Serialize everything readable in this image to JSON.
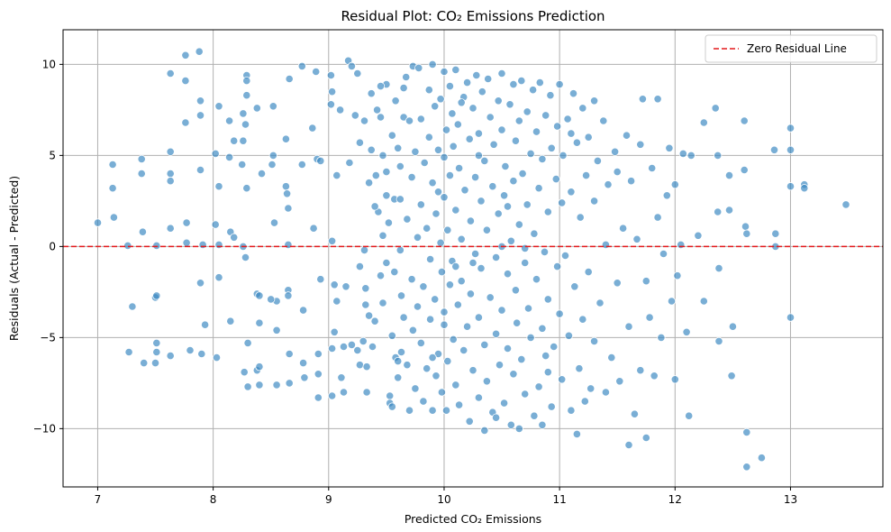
{
  "chart_data": {
    "type": "scatter",
    "title": "Residual Plot: CO₂ Emissions Prediction",
    "xlabel": "Predicted CO₂ Emissions",
    "ylabel": "Residuals (Actual - Predicted)",
    "xlim": [
      6.7,
      13.8
    ],
    "ylim": [
      -13.2,
      11.9
    ],
    "xticks": [
      7,
      8,
      9,
      10,
      11,
      12,
      13
    ],
    "yticks": [
      -10,
      -5,
      0,
      5,
      10
    ],
    "grid": true,
    "legend": {
      "position": "top-right",
      "entries": [
        "Zero Residual Line"
      ]
    },
    "reference_line": {
      "y": 0,
      "label": "Zero Residual Line",
      "style": "dashed",
      "color": "#e41a1c"
    },
    "point_color": "#3a87c1",
    "points": [
      [
        7.0,
        1.3
      ],
      [
        7.13,
        4.5
      ],
      [
        7.13,
        3.2
      ],
      [
        7.14,
        1.6
      ],
      [
        7.26,
        0.05
      ],
      [
        7.27,
        -5.8
      ],
      [
        7.3,
        -3.3
      ],
      [
        7.38,
        4.8
      ],
      [
        7.38,
        4.0
      ],
      [
        7.39,
        0.8
      ],
      [
        7.4,
        -6.4
      ],
      [
        7.5,
        -6.4
      ],
      [
        7.5,
        -2.8
      ],
      [
        7.51,
        -2.7
      ],
      [
        7.51,
        -5.3
      ],
      [
        7.51,
        -5.8
      ],
      [
        7.51,
        0.05
      ],
      [
        7.63,
        9.5
      ],
      [
        7.63,
        5.2
      ],
      [
        7.63,
        4.0
      ],
      [
        7.63,
        3.6
      ],
      [
        7.63,
        1.0
      ],
      [
        7.63,
        -6.0
      ],
      [
        7.76,
        10.5
      ],
      [
        7.76,
        9.1
      ],
      [
        7.76,
        6.8
      ],
      [
        7.77,
        1.3
      ],
      [
        7.77,
        0.2
      ],
      [
        7.8,
        -5.7
      ],
      [
        7.88,
        10.7
      ],
      [
        7.89,
        8.0
      ],
      [
        7.89,
        7.2
      ],
      [
        7.89,
        4.2
      ],
      [
        7.89,
        -2.0
      ],
      [
        7.9,
        -5.9
      ],
      [
        7.91,
        0.1
      ],
      [
        7.93,
        -4.3
      ],
      [
        8.02,
        5.1
      ],
      [
        8.02,
        1.2
      ],
      [
        8.03,
        -6.1
      ],
      [
        8.05,
        7.7
      ],
      [
        8.05,
        3.3
      ],
      [
        8.05,
        0.1
      ],
      [
        8.05,
        -1.7
      ],
      [
        8.14,
        6.9
      ],
      [
        8.14,
        4.9
      ],
      [
        8.15,
        0.8
      ],
      [
        8.15,
        -4.1
      ],
      [
        8.18,
        5.8
      ],
      [
        8.18,
        0.5
      ],
      [
        8.25,
        4.5
      ],
      [
        8.26,
        7.3
      ],
      [
        8.26,
        5.8
      ],
      [
        8.26,
        0.0
      ],
      [
        8.27,
        -6.9
      ],
      [
        8.28,
        6.7
      ],
      [
        8.28,
        -0.6
      ],
      [
        8.29,
        9.4
      ],
      [
        8.29,
        9.1
      ],
      [
        8.29,
        8.3
      ],
      [
        8.29,
        3.2
      ],
      [
        8.3,
        -5.3
      ],
      [
        8.3,
        -7.7
      ],
      [
        8.38,
        7.6
      ],
      [
        8.38,
        -2.6
      ],
      [
        8.38,
        -6.8
      ],
      [
        8.4,
        -4.2
      ],
      [
        8.4,
        -2.7
      ],
      [
        8.4,
        -6.6
      ],
      [
        8.4,
        -7.6
      ],
      [
        8.42,
        4.0
      ],
      [
        8.51,
        4.5
      ],
      [
        8.52,
        7.7
      ],
      [
        8.52,
        5.0
      ],
      [
        8.53,
        1.3
      ],
      [
        8.55,
        -3.0
      ],
      [
        8.55,
        -4.6
      ],
      [
        8.55,
        -7.6
      ],
      [
        8.63,
        5.9
      ],
      [
        8.63,
        3.3
      ],
      [
        8.64,
        2.9
      ],
      [
        8.65,
        2.1
      ],
      [
        8.65,
        0.1
      ],
      [
        8.65,
        -2.4
      ],
      [
        8.65,
        -2.7
      ],
      [
        8.66,
        9.2
      ],
      [
        8.66,
        -5.9
      ],
      [
        8.66,
        -7.5
      ],
      [
        8.77,
        9.9
      ],
      [
        8.77,
        4.5
      ],
      [
        8.78,
        -3.5
      ],
      [
        8.78,
        -6.4
      ],
      [
        8.79,
        -7.2
      ],
      [
        8.86,
        6.5
      ],
      [
        8.87,
        1.0
      ],
      [
        8.89,
        9.6
      ],
      [
        8.9,
        4.8
      ],
      [
        8.91,
        -5.9
      ],
      [
        8.91,
        -7.0
      ],
      [
        8.91,
        -8.3
      ],
      [
        8.93,
        4.7
      ],
      [
        8.93,
        -1.8
      ],
      [
        9.02,
        9.4
      ],
      [
        9.02,
        7.8
      ],
      [
        9.03,
        8.5
      ],
      [
        9.03,
        0.3
      ],
      [
        9.03,
        -5.6
      ],
      [
        9.03,
        -8.2
      ],
      [
        9.05,
        -2.1
      ],
      [
        9.05,
        -4.7
      ],
      [
        9.07,
        3.9
      ],
      [
        9.07,
        -3.0
      ],
      [
        9.1,
        7.5
      ],
      [
        9.11,
        -7.2
      ],
      [
        9.13,
        -5.5
      ],
      [
        9.13,
        -8.0
      ],
      [
        9.15,
        -2.2
      ],
      [
        9.17,
        10.2
      ],
      [
        9.18,
        4.6
      ],
      [
        9.2,
        9.9
      ],
      [
        9.2,
        -5.4
      ],
      [
        9.23,
        7.2
      ],
      [
        9.25,
        9.5
      ],
      [
        9.25,
        -5.7
      ],
      [
        9.27,
        5.7
      ],
      [
        9.27,
        -1.1
      ],
      [
        9.27,
        -6.5
      ],
      [
        9.3,
        -5.2
      ],
      [
        9.31,
        6.9
      ],
      [
        9.31,
        -0.2
      ],
      [
        9.32,
        -2.3
      ],
      [
        9.32,
        -3.2
      ],
      [
        9.33,
        -6.6
      ],
      [
        9.33,
        -8.0
      ],
      [
        9.35,
        3.5
      ],
      [
        9.35,
        -3.8
      ],
      [
        9.37,
        8.4
      ],
      [
        9.37,
        5.3
      ],
      [
        9.38,
        -5.5
      ],
      [
        9.4,
        -4.1
      ],
      [
        9.41,
        3.9
      ],
      [
        9.42,
        7.5
      ],
      [
        9.43,
        1.9
      ],
      [
        9.45,
        7.1
      ],
      [
        9.45,
        -1.6
      ],
      [
        9.47,
        5.0
      ],
      [
        9.47,
        0.6
      ],
      [
        9.47,
        -3.1
      ],
      [
        9.5,
        8.9
      ],
      [
        9.5,
        4.1
      ],
      [
        9.5,
        2.8
      ],
      [
        9.5,
        -0.9
      ],
      [
        9.52,
        1.3
      ],
      [
        9.53,
        -8.2
      ],
      [
        9.53,
        -8.6
      ],
      [
        9.55,
        6.1
      ],
      [
        9.55,
        -4.9
      ],
      [
        9.57,
        2.6
      ],
      [
        9.57,
        -1.4
      ],
      [
        9.58,
        8.0
      ],
      [
        9.58,
        -6.1
      ],
      [
        9.6,
        5.4
      ],
      [
        9.6,
        -7.2
      ],
      [
        9.62,
        4.4
      ],
      [
        9.62,
        2.6
      ],
      [
        9.62,
        -0.2
      ],
      [
        9.63,
        -2.7
      ],
      [
        9.63,
        -5.8
      ],
      [
        9.65,
        8.7
      ],
      [
        9.65,
        7.1
      ],
      [
        9.65,
        -3.9
      ],
      [
        9.67,
        9.3
      ],
      [
        9.68,
        1.5
      ],
      [
        9.68,
        -6.5
      ],
      [
        9.7,
        6.9
      ],
      [
        9.7,
        -9.0
      ],
      [
        9.72,
        3.8
      ],
      [
        9.72,
        -1.8
      ],
      [
        9.73,
        9.9
      ],
      [
        9.73,
        -4.6
      ],
      [
        9.75,
        5.2
      ],
      [
        9.75,
        -7.8
      ],
      [
        9.77,
        0.5
      ],
      [
        9.77,
        -3.3
      ],
      [
        9.78,
        9.8
      ],
      [
        9.8,
        7.0
      ],
      [
        9.8,
        2.3
      ],
      [
        9.8,
        -5.3
      ],
      [
        9.82,
        -2.2
      ],
      [
        9.82,
        -8.5
      ],
      [
        9.83,
        4.6
      ],
      [
        9.85,
        1.0
      ],
      [
        9.85,
        -6.7
      ],
      [
        9.87,
        8.6
      ],
      [
        9.87,
        6.0
      ],
      [
        9.88,
        -0.7
      ],
      [
        9.88,
        -4.0
      ],
      [
        9.9,
        10.0
      ],
      [
        9.9,
        3.5
      ],
      [
        9.9,
        -9.0
      ],
      [
        9.92,
        7.7
      ],
      [
        9.92,
        -2.9
      ],
      [
        9.93,
        1.8
      ],
      [
        9.93,
        -7.1
      ],
      [
        9.95,
        5.3
      ],
      [
        9.95,
        -5.9
      ],
      [
        9.97,
        8.1
      ],
      [
        9.97,
        0.2
      ],
      [
        9.98,
        -1.4
      ],
      [
        9.98,
        -8.0
      ],
      [
        10.0,
        9.6
      ],
      [
        10.0,
        4.9
      ],
      [
        10.0,
        2.7
      ],
      [
        10.0,
        -3.6
      ],
      [
        10.0,
        -4.3
      ],
      [
        10.02,
        6.4
      ],
      [
        10.02,
        -9.0
      ],
      [
        10.03,
        0.9
      ],
      [
        10.03,
        -6.3
      ],
      [
        10.05,
        8.8
      ],
      [
        10.05,
        3.9
      ],
      [
        10.05,
        -2.1
      ],
      [
        10.07,
        7.3
      ],
      [
        10.07,
        -0.8
      ],
      [
        10.08,
        5.5
      ],
      [
        10.08,
        -5.1
      ],
      [
        10.1,
        9.7
      ],
      [
        10.1,
        2.0
      ],
      [
        10.1,
        -7.6
      ],
      [
        10.12,
        6.7
      ],
      [
        10.12,
        -3.2
      ],
      [
        10.13,
        4.3
      ],
      [
        10.13,
        -8.7
      ],
      [
        10.15,
        0.4
      ],
      [
        10.15,
        -1.9
      ],
      [
        10.17,
        8.2
      ],
      [
        10.17,
        -5.7
      ],
      [
        10.18,
        3.1
      ],
      [
        10.2,
        9.0
      ],
      [
        10.2,
        -4.4
      ],
      [
        10.22,
        5.9
      ],
      [
        10.22,
        -9.6
      ],
      [
        10.23,
        1.4
      ],
      [
        10.23,
        -2.6
      ],
      [
        10.25,
        7.6
      ],
      [
        10.25,
        -6.8
      ],
      [
        10.27,
        3.8
      ],
      [
        10.27,
        -0.4
      ],
      [
        10.28,
        9.4
      ],
      [
        10.3,
        6.2
      ],
      [
        10.3,
        -3.9
      ],
      [
        10.3,
        -8.3
      ],
      [
        10.32,
        2.5
      ],
      [
        10.32,
        -1.2
      ],
      [
        10.33,
        8.5
      ],
      [
        10.35,
        4.7
      ],
      [
        10.35,
        -5.4
      ],
      [
        10.37,
        0.9
      ],
      [
        10.37,
        -7.4
      ],
      [
        10.38,
        9.2
      ],
      [
        10.4,
        7.1
      ],
      [
        10.4,
        -2.8
      ],
      [
        10.42,
        3.3
      ],
      [
        10.42,
        -9.1
      ],
      [
        10.43,
        5.6
      ],
      [
        10.45,
        -0.6
      ],
      [
        10.45,
        -4.8
      ],
      [
        10.47,
        8.0
      ],
      [
        10.47,
        1.8
      ],
      [
        10.48,
        -6.5
      ],
      [
        10.5,
        9.5
      ],
      [
        10.5,
        6.4
      ],
      [
        10.5,
        -3.5
      ],
      [
        10.52,
        2.8
      ],
      [
        10.52,
        -8.6
      ],
      [
        10.53,
        4.4
      ],
      [
        10.55,
        -1.5
      ],
      [
        10.55,
        -5.6
      ],
      [
        10.57,
        7.8
      ],
      [
        10.58,
        0.3
      ],
      [
        10.58,
        -9.8
      ],
      [
        10.6,
        8.9
      ],
      [
        10.6,
        3.6
      ],
      [
        10.6,
        -7.0
      ],
      [
        10.62,
        5.8
      ],
      [
        10.62,
        -2.4
      ],
      [
        10.63,
        -4.2
      ],
      [
        10.65,
        6.9
      ],
      [
        10.65,
        1.2
      ],
      [
        10.67,
        9.1
      ],
      [
        10.67,
        -6.2
      ],
      [
        10.68,
        4.0
      ],
      [
        10.7,
        -0.9
      ],
      [
        10.7,
        -8.1
      ],
      [
        10.72,
        7.4
      ],
      [
        10.72,
        2.3
      ],
      [
        10.73,
        -3.4
      ],
      [
        10.75,
        5.1
      ],
      [
        10.75,
        -5.0
      ],
      [
        10.77,
        8.6
      ],
      [
        10.78,
        0.7
      ],
      [
        10.78,
        -9.3
      ],
      [
        10.8,
        6.3
      ],
      [
        10.8,
        -1.8
      ],
      [
        10.82,
        3.2
      ],
      [
        10.82,
        -7.7
      ],
      [
        10.83,
        9.0
      ],
      [
        10.85,
        4.8
      ],
      [
        10.85,
        -4.5
      ],
      [
        10.87,
        -0.3
      ],
      [
        10.88,
        7.2
      ],
      [
        10.88,
        -6.0
      ],
      [
        10.9,
        1.9
      ],
      [
        10.9,
        -2.9
      ],
      [
        10.92,
        8.3
      ],
      [
        10.93,
        5.4
      ],
      [
        10.93,
        -8.8
      ],
      [
        10.95,
        -5.5
      ],
      [
        10.97,
        3.7
      ],
      [
        10.98,
        6.6
      ],
      [
        10.98,
        -1.1
      ],
      [
        11.0,
        8.9
      ],
      [
        11.0,
        -3.7
      ],
      [
        11.02,
        2.4
      ],
      [
        11.02,
        -7.3
      ],
      [
        11.03,
        5.0
      ],
      [
        11.05,
        -0.5
      ],
      [
        11.07,
        7.0
      ],
      [
        11.08,
        -4.9
      ],
      [
        11.1,
        3.0
      ],
      [
        11.1,
        -9.0
      ],
      [
        11.12,
        8.4
      ],
      [
        11.13,
        -2.2
      ],
      [
        11.15,
        5.7
      ],
      [
        11.17,
        -6.7
      ],
      [
        11.18,
        1.6
      ],
      [
        11.2,
        7.6
      ],
      [
        11.2,
        -4.0
      ],
      [
        11.22,
        -8.5
      ],
      [
        11.23,
        3.9
      ],
      [
        11.25,
        6.0
      ],
      [
        11.25,
        -1.4
      ],
      [
        11.27,
        -7.8
      ],
      [
        11.3,
        2.5
      ],
      [
        11.3,
        -5.2
      ],
      [
        11.33,
        4.7
      ],
      [
        11.35,
        -3.1
      ],
      [
        11.38,
        6.9
      ],
      [
        11.4,
        0.1
      ],
      [
        11.4,
        -8.0
      ],
      [
        11.42,
        3.4
      ],
      [
        11.45,
        -6.1
      ],
      [
        11.48,
        5.2
      ],
      [
        11.5,
        -2.0
      ],
      [
        11.52,
        -7.4
      ],
      [
        11.55,
        1.0
      ],
      [
        11.58,
        6.1
      ],
      [
        11.6,
        -4.4
      ],
      [
        11.62,
        3.6
      ],
      [
        11.65,
        -9.2
      ],
      [
        11.67,
        0.4
      ],
      [
        11.7,
        5.6
      ],
      [
        11.7,
        -6.8
      ],
      [
        11.72,
        8.1
      ],
      [
        11.75,
        -1.9
      ],
      [
        11.75,
        -10.5
      ],
      [
        11.78,
        -3.9
      ],
      [
        11.8,
        4.3
      ],
      [
        11.82,
        -7.1
      ],
      [
        11.85,
        1.6
      ],
      [
        11.88,
        -5.0
      ],
      [
        11.9,
        -0.4
      ],
      [
        11.93,
        2.8
      ],
      [
        11.95,
        5.4
      ],
      [
        11.97,
        -3.0
      ],
      [
        12.0,
        3.4
      ],
      [
        12.0,
        -7.3
      ],
      [
        12.02,
        -1.6
      ],
      [
        12.05,
        0.1
      ],
      [
        12.07,
        5.1
      ],
      [
        12.1,
        -4.7
      ],
      [
        12.12,
        -9.3
      ],
      [
        12.14,
        5.0
      ],
      [
        12.2,
        0.6
      ],
      [
        12.25,
        6.8
      ],
      [
        12.25,
        -3.0
      ],
      [
        12.35,
        7.6
      ],
      [
        12.37,
        5.0
      ],
      [
        12.37,
        1.9
      ],
      [
        12.38,
        -1.2
      ],
      [
        12.38,
        -5.2
      ],
      [
        12.47,
        3.9
      ],
      [
        12.47,
        2.0
      ],
      [
        12.49,
        -7.1
      ],
      [
        12.5,
        -4.4
      ],
      [
        12.6,
        6.9
      ],
      [
        12.6,
        4.2
      ],
      [
        12.61,
        1.1
      ],
      [
        12.62,
        0.7
      ],
      [
        12.62,
        -10.2
      ],
      [
        12.62,
        -12.1
      ],
      [
        12.75,
        -11.6
      ],
      [
        12.86,
        5.3
      ],
      [
        12.87,
        0.7
      ],
      [
        12.87,
        0.0
      ],
      [
        13.0,
        6.5
      ],
      [
        13.0,
        5.3
      ],
      [
        13.0,
        3.3
      ],
      [
        13.0,
        -3.9
      ],
      [
        13.12,
        3.4
      ],
      [
        13.12,
        3.2
      ],
      [
        13.48,
        2.3
      ],
      [
        8.5,
        -2.9
      ],
      [
        9.4,
        2.2
      ],
      [
        9.6,
        -6.3
      ],
      [
        9.9,
        -6.1
      ],
      [
        10.1,
        -1.1
      ],
      [
        10.3,
        5.0
      ],
      [
        10.5,
        0.0
      ],
      [
        10.7,
        -0.1
      ],
      [
        10.9,
        -6.9
      ],
      [
        11.1,
        6.2
      ],
      [
        11.3,
        8.0
      ],
      [
        11.5,
        4.1
      ],
      [
        9.45,
        8.8
      ],
      [
        9.55,
        -8.8
      ],
      [
        10.15,
        7.9
      ],
      [
        10.45,
        -9.4
      ],
      [
        10.85,
        -9.8
      ],
      [
        11.15,
        -10.3
      ],
      [
        11.6,
        -10.9
      ],
      [
        11.85,
        8.1
      ],
      [
        10.65,
        -10.0
      ],
      [
        10.35,
        -10.1
      ],
      [
        9.95,
        3.0
      ],
      [
        10.25,
        -0.9
      ],
      [
        10.55,
        2.2
      ]
    ]
  }
}
